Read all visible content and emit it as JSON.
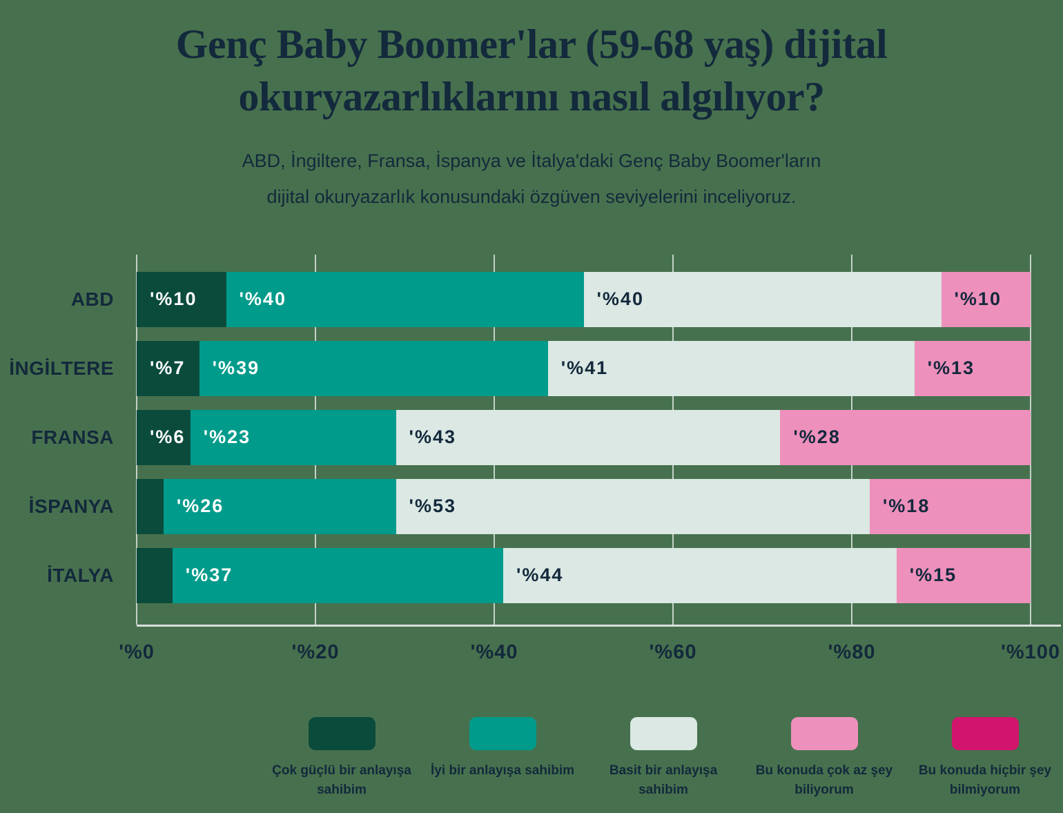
{
  "title": {
    "line1": "Genç Baby Boomer'lar (59-68 yaş) dijital",
    "line2": "okuryazarlıklarını nasıl algılıyor?"
  },
  "subtitle": {
    "line1": "ABD, İngiltere, Fransa, İspanya ve İtalya'daki Genç Baby Boomer'ların",
    "line2": "dijital okuryazarlık konusundaki özgüven seviyelerini inceliyoruz."
  },
  "colors": {
    "background": "#47714E",
    "text": "#13293C",
    "gridline": "#C5D1C8",
    "axis_line": "#D9E1DA"
  },
  "chart_data": {
    "type": "bar",
    "orientation": "horizontal-stacked",
    "title": "Genç Baby Boomer'lar (59-68 yaş) dijital okuryazarlıklarını nasıl algılıyor?",
    "categories": [
      "ABD",
      "İNGİLTERE",
      "FRANSA",
      "İSPANYA",
      "İTALYA"
    ],
    "series": [
      {
        "name": "Çok güçlü bir anlayışa sahibim",
        "color": "#0B4B3C",
        "label_color": "#FFFFFF",
        "values": [
          10,
          7,
          6,
          3,
          4
        ],
        "labels": [
          "'%10",
          "'%7",
          "'%6",
          "",
          ""
        ]
      },
      {
        "name": "İyi bir anlayışa sahibim",
        "color": "#009B8B",
        "label_color": "#FFFFFF",
        "values": [
          40,
          39,
          23,
          26,
          37
        ],
        "labels": [
          "'%40",
          "'%39",
          "'%23",
          "'%26",
          "'%37"
        ]
      },
      {
        "name": "Basit bir anlayışa sahibim",
        "color": "#DBE8E3",
        "label_color": "#13293C",
        "values": [
          40,
          41,
          43,
          53,
          44
        ],
        "labels": [
          "'%40",
          "'%41",
          "'%43",
          "'%53",
          "'%44"
        ]
      },
      {
        "name": "Bu konuda çok az şey biliyorum",
        "color": "#EE90BC",
        "label_color": "#13293C",
        "values": [
          10,
          13,
          28,
          18,
          15
        ],
        "labels": [
          "'%10",
          "'%13",
          "'%28",
          "'%18",
          "'%15"
        ]
      },
      {
        "name": "Bu konuda hiçbir şey bilmiyorum",
        "color": "#D1146C",
        "label_color": "#FFFFFF",
        "values": [
          0,
          0,
          0,
          0,
          0
        ],
        "labels": [
          "",
          "",
          "",
          "",
          ""
        ]
      }
    ],
    "x_ticks": [
      "'%0",
      "'%20",
      "'%40",
      "'%60",
      "'%80",
      "'%100"
    ],
    "xlim": [
      0,
      100
    ],
    "grid": true,
    "legend_position": "bottom"
  }
}
